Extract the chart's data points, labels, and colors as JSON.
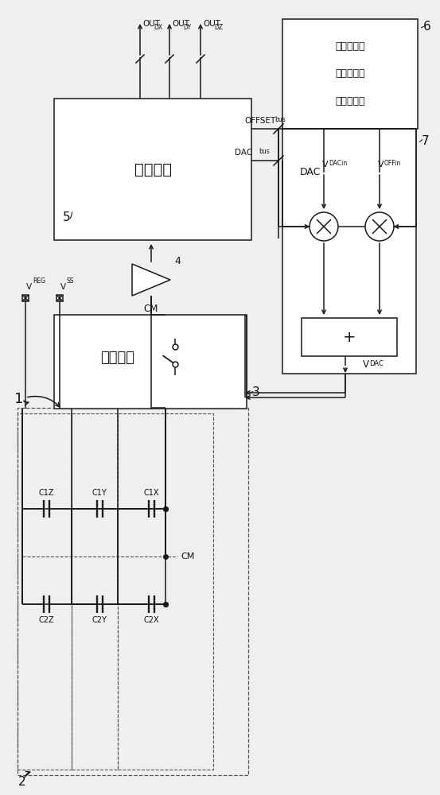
{
  "bg_color": "#f0eeee",
  "line_color": "#1a1a1a",
  "box_fill": "#ffffff",
  "labels": {
    "block3_chinese": "切换单元",
    "block5_chinese": "逗辑单元",
    "block6_line1": "具有可编程",
    "block6_line2": "增量的基准",
    "block6_line3": "电压发生器",
    "num1": "1",
    "num2": "2",
    "num3": "3",
    "num4": "4",
    "num5": "5",
    "num6": "6",
    "num7": "7",
    "VREG": "V",
    "VREG_sub": "REG",
    "VSS": "V",
    "VSS_sub": "SS",
    "CM_bot": "CM",
    "CM_cap": "CM",
    "OFFSET_bus": "OFFSET",
    "OFFSET_bus_sub": "bus",
    "DAC_bus": "DAC",
    "DAC_bus_sub": "bus",
    "VDAC_label": "V",
    "VDAC_sub": "DAC",
    "VDACin": "V",
    "VDACin_sub": "DACin",
    "VOFFin": "V",
    "VOFFin_sub": "OFFin",
    "DAC_text": "DAC",
    "plus_text": "+",
    "OUTDX": "OUT",
    "OUTDX_sub": "DX",
    "OUTDY": "OUT",
    "OUTDY_sub": "DY",
    "OUTDZ": "OUT",
    "OUTDZ_sub": "DZ",
    "C1X": "C1X",
    "C2X": "C2X",
    "C1Y": "C1Y",
    "C2Y": "C2Y",
    "C1Z": "C1Z",
    "C2Z": "C2Z"
  }
}
